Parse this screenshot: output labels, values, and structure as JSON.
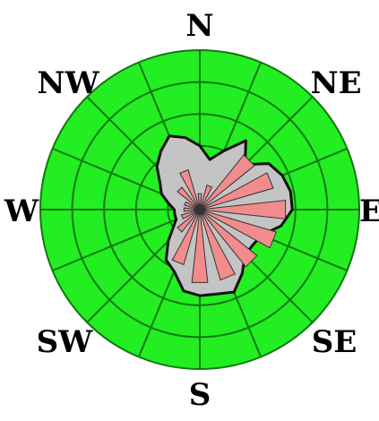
{
  "chart_data": {
    "type": "radar",
    "subtype": "wind-rose",
    "title": "",
    "directions": [
      "N",
      "NE",
      "E",
      "SE",
      "S",
      "SW",
      "W",
      "NW"
    ],
    "sectors": 16,
    "rings": 5,
    "rmax": 5,
    "grid": true,
    "colors": {
      "background": "#22ee22",
      "grid": "#117711",
      "envelope_fill": "#c4c4c4",
      "envelope_line": "#111111",
      "sector_fill": "#f28c8c",
      "sector_line": "#333333"
    },
    "series": [
      {
        "kind": "envelope",
        "values": [
          2.0,
          1.6,
          2.0,
          2.6,
          2.0,
          2.6,
          2.8,
          2.9,
          2.9,
          2.6,
          2.1,
          2.0,
          2.0,
          2.4,
          2.8,
          2.7,
          2.7,
          2.6,
          2.1,
          1.9,
          1.4,
          1.0,
          0.8,
          0.8,
          0.8,
          1.0,
          1.3,
          1.5,
          1.9,
          2.2,
          2.5,
          2.3
        ]
      },
      {
        "kind": "sectors",
        "values": [
          0.5,
          0.8,
          2.2,
          2.4,
          2.7,
          2.5,
          2.3,
          2.3,
          2.3,
          1.8,
          0.9,
          0.6,
          0.5,
          0.5,
          0.9,
          1.3
        ]
      }
    ]
  }
}
